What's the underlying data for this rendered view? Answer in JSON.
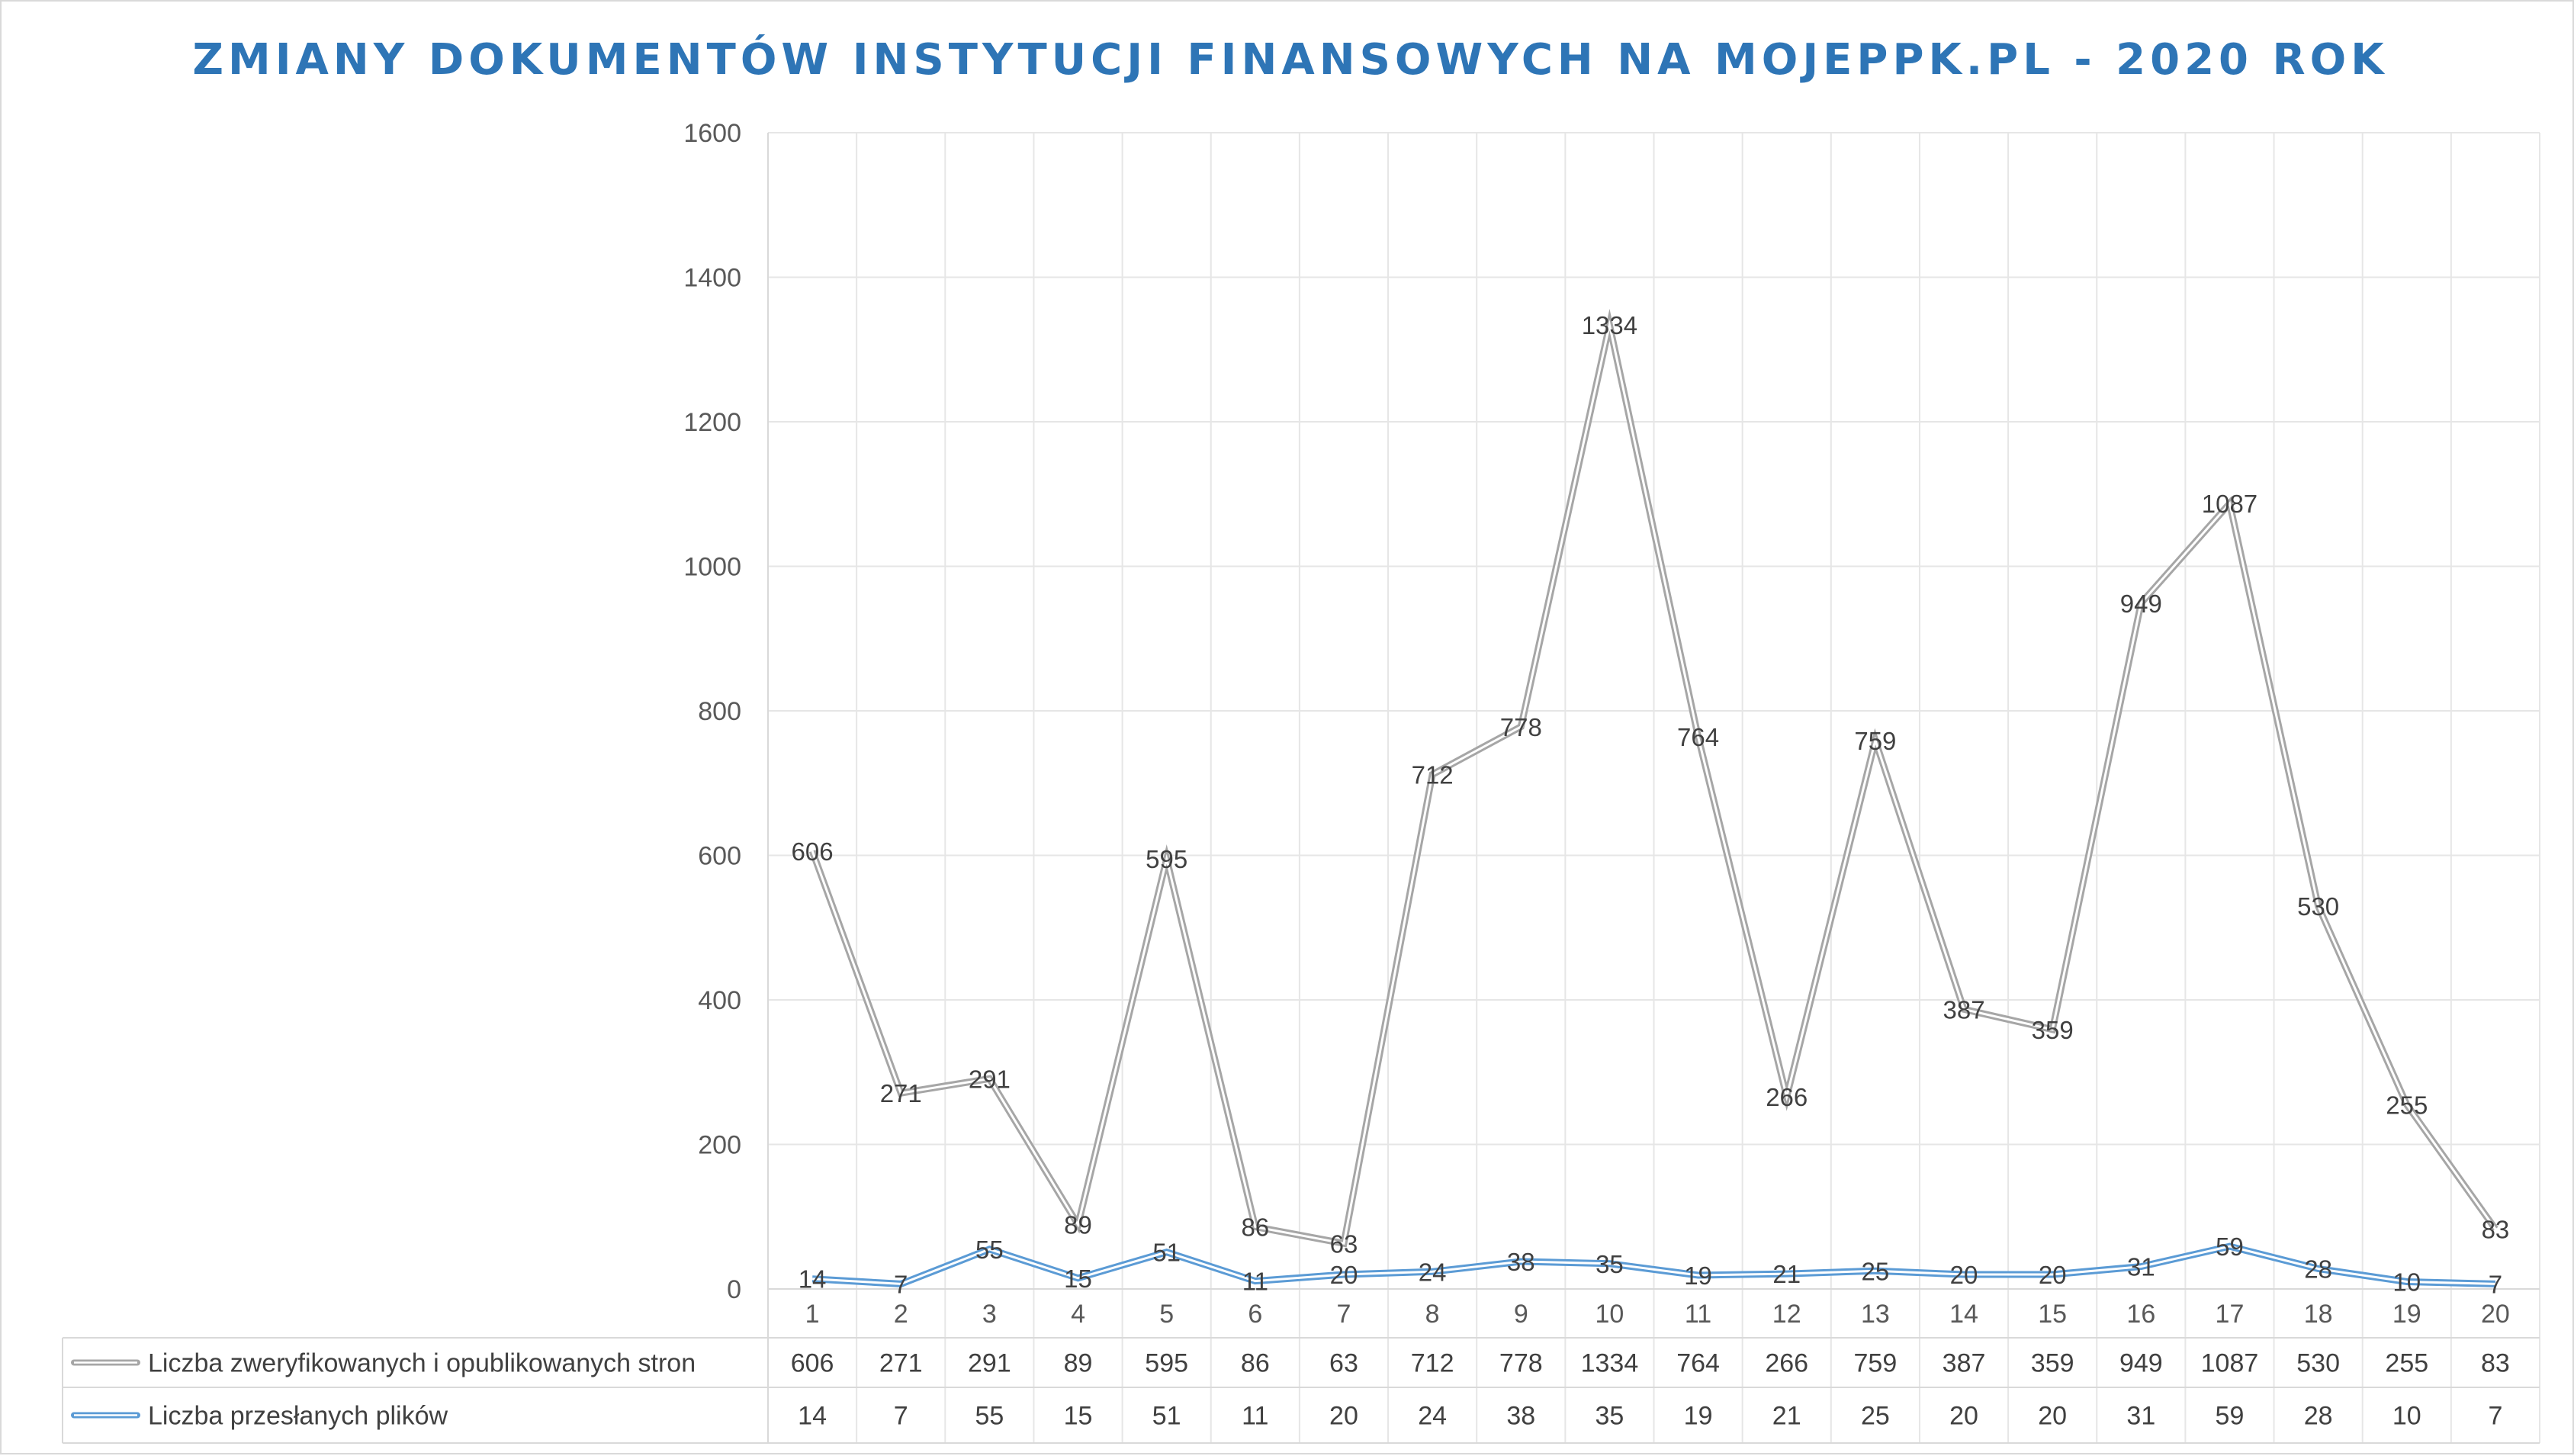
{
  "chart_data": {
    "type": "line",
    "title": "ZMIANY DOKUMENTÓW INSTYTUCJI FINANSOWYCH NA MOJEPPK.PL - 2020 ROK",
    "categories": [
      "1",
      "2",
      "3",
      "4",
      "5",
      "6",
      "7",
      "8",
      "9",
      "10",
      "11",
      "12",
      "13",
      "14",
      "15",
      "16",
      "17",
      "18",
      "19",
      "20"
    ],
    "y_ticks": [
      "0",
      "200",
      "400",
      "600",
      "800",
      "1000",
      "1200",
      "1400",
      "1600"
    ],
    "ylim": [
      0,
      1600
    ],
    "grid": true,
    "legend_placement": "data-table",
    "series": [
      {
        "name": "Liczba zweryfikowanych i opublikowanych stron",
        "color": "#a6a6a6",
        "values": [
          606,
          271,
          291,
          89,
          595,
          86,
          63,
          712,
          778,
          1334,
          764,
          266,
          759,
          387,
          359,
          949,
          1087,
          530,
          255,
          83
        ]
      },
      {
        "name": "Liczba przesłanych plików",
        "color": "#5b9bd5",
        "values": [
          14,
          7,
          55,
          15,
          51,
          11,
          20,
          24,
          38,
          35,
          19,
          21,
          25,
          20,
          20,
          31,
          59,
          28,
          10,
          7
        ]
      }
    ]
  }
}
